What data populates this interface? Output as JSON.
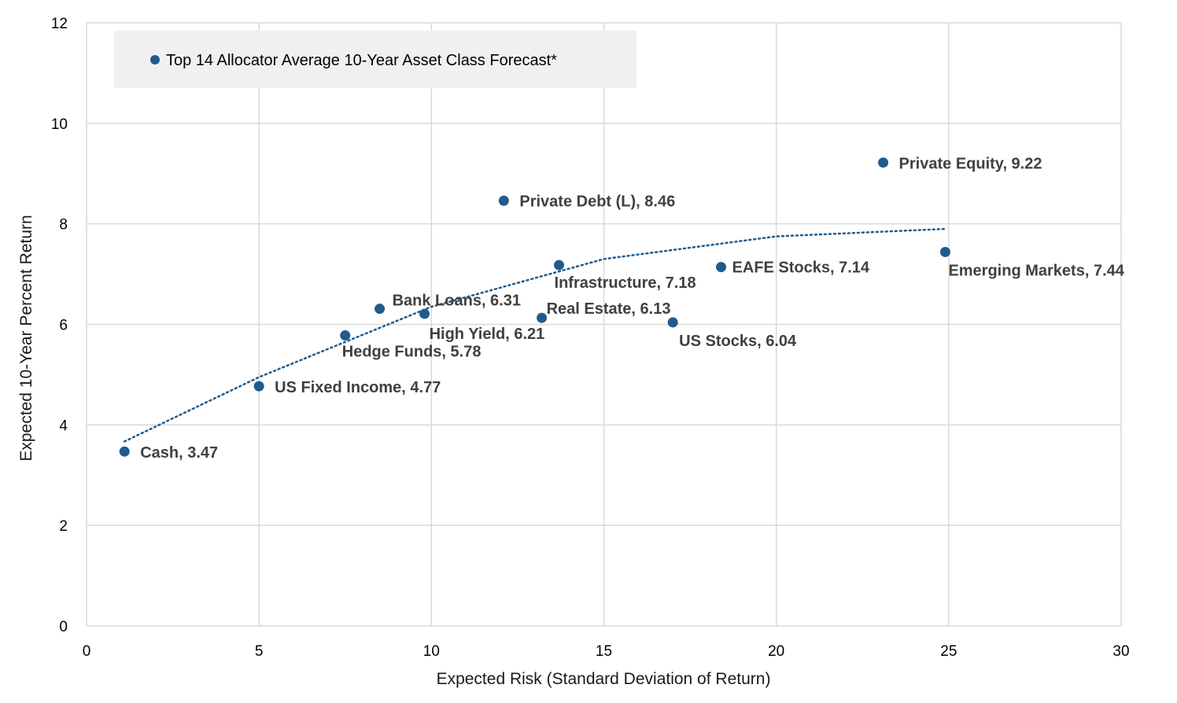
{
  "chart_data": {
    "type": "scatter",
    "title": "",
    "xlabel": "Expected Risk (Standard Deviation of Return)",
    "ylabel": "Expected 10-Year Percent Return",
    "xlim": [
      0,
      30
    ],
    "ylim": [
      0,
      12
    ],
    "x_ticks": [
      "0",
      "5",
      "10",
      "15",
      "20",
      "25",
      "30"
    ],
    "y_ticks": [
      "0",
      "2",
      "4",
      "6",
      "8",
      "10",
      "12"
    ],
    "grid": true,
    "legend_position": "top-left",
    "series": [
      {
        "name": "Top 14 Allocator Average 10-Year Asset Class Forecast*",
        "color": "#1f5b8f",
        "points": [
          {
            "label": "Cash, 3.47",
            "x": 1.1,
            "y": 3.47
          },
          {
            "label": "US Fixed Income, 4.77",
            "x": 5.0,
            "y": 4.77
          },
          {
            "label": "Hedge Funds, 5.78",
            "x": 7.5,
            "y": 5.78
          },
          {
            "label": "Bank Loans, 6.31",
            "x": 8.5,
            "y": 6.31
          },
          {
            "label": "High Yield, 6.21",
            "x": 9.8,
            "y": 6.21
          },
          {
            "label": "Private Debt (L), 8.46",
            "x": 12.1,
            "y": 8.46
          },
          {
            "label": "Real Estate, 6.13",
            "x": 13.2,
            "y": 6.13
          },
          {
            "label": "Infrastructure, 7.18",
            "x": 13.7,
            "y": 7.18
          },
          {
            "label": "US Stocks, 6.04",
            "x": 17.0,
            "y": 6.04
          },
          {
            "label": "EAFE Stocks, 7.14",
            "x": 18.4,
            "y": 7.14
          },
          {
            "label": "Private Equity, 9.22",
            "x": 23.1,
            "y": 9.22
          },
          {
            "label": "Emerging Markets, 7.44",
            "x": 24.9,
            "y": 7.44
          }
        ]
      }
    ],
    "trendline": {
      "style": "dotted",
      "color": "#1f5b8f",
      "x_range": [
        1.1,
        24.9
      ],
      "points": [
        {
          "x": 1.1,
          "y": 3.67
        },
        {
          "x": 5.0,
          "y": 4.95
        },
        {
          "x": 10.0,
          "y": 6.35
        },
        {
          "x": 15.0,
          "y": 7.3
        },
        {
          "x": 20.0,
          "y": 7.75
        },
        {
          "x": 24.9,
          "y": 7.9
        }
      ]
    }
  }
}
